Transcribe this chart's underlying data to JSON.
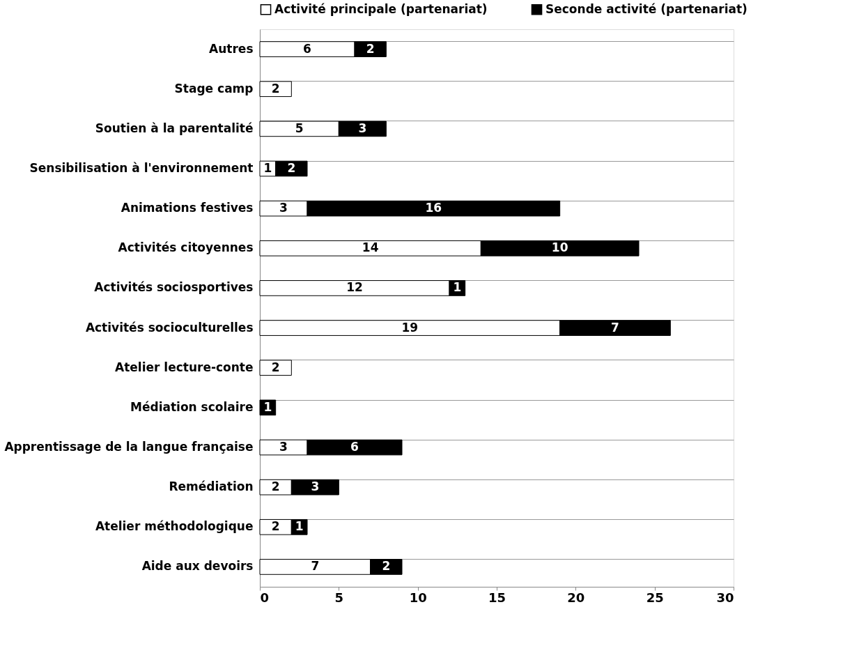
{
  "chart_data": {
    "type": "bar",
    "orientation": "horizontal",
    "stacked": true,
    "categories": [
      "Autres",
      "Stage camp",
      "Soutien à la parentalité",
      "Sensibilisation à l'environnement",
      "Animations festives",
      "Activités citoyennes",
      "Activités sociosportives",
      "Activités socioculturelles",
      "Atelier lecture-conte",
      "Médiation scolaire",
      "Apprentissage de la langue française",
      "Remédiation",
      "Atelier méthodologique",
      "Aide aux devoirs"
    ],
    "series": [
      {
        "name": "Activité principale (partenariat)",
        "color": "#ffffff",
        "values": [
          6,
          2,
          5,
          1,
          3,
          14,
          12,
          19,
          2,
          null,
          3,
          2,
          2,
          7
        ]
      },
      {
        "name": "Seconde activité (partenariat)",
        "color": "#000000",
        "values": [
          2,
          null,
          3,
          2,
          16,
          10,
          1,
          7,
          null,
          1,
          6,
          3,
          1,
          2
        ]
      }
    ],
    "xlim": [
      0,
      30
    ],
    "xticks": [
      0,
      5,
      10,
      15,
      20,
      25,
      30
    ],
    "data_labels": true,
    "grid": "y",
    "legend": "top"
  }
}
